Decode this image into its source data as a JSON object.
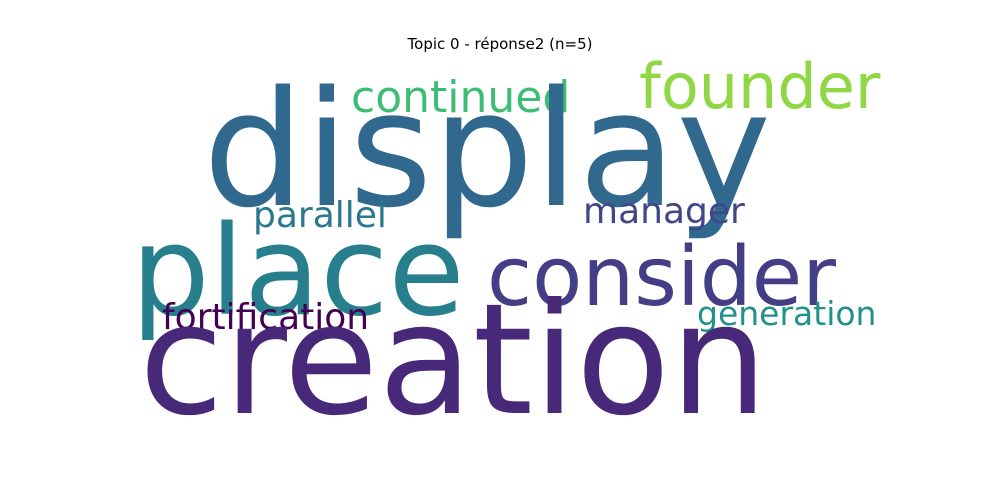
{
  "title": "Topic 0 - réponse2 (n=5)",
  "words": {
    "display": {
      "text": "display",
      "color": "#31688e"
    },
    "founder": {
      "text": "founder",
      "color": "#8fd744"
    },
    "continued": {
      "text": "continued",
      "color": "#3dbc74"
    },
    "place": {
      "text": "place",
      "color": "#277f8e"
    },
    "consider": {
      "text": "consider",
      "color": "#433e85"
    },
    "parallel": {
      "text": "parallel",
      "color": "#2a788e"
    },
    "manager": {
      "text": "manager",
      "color": "#3f4788"
    },
    "fortification": {
      "text": "fortification",
      "color": "#440154"
    },
    "generation": {
      "text": "generation",
      "color": "#21918c"
    },
    "creation": {
      "text": "creation",
      "color": "#482878"
    }
  }
}
